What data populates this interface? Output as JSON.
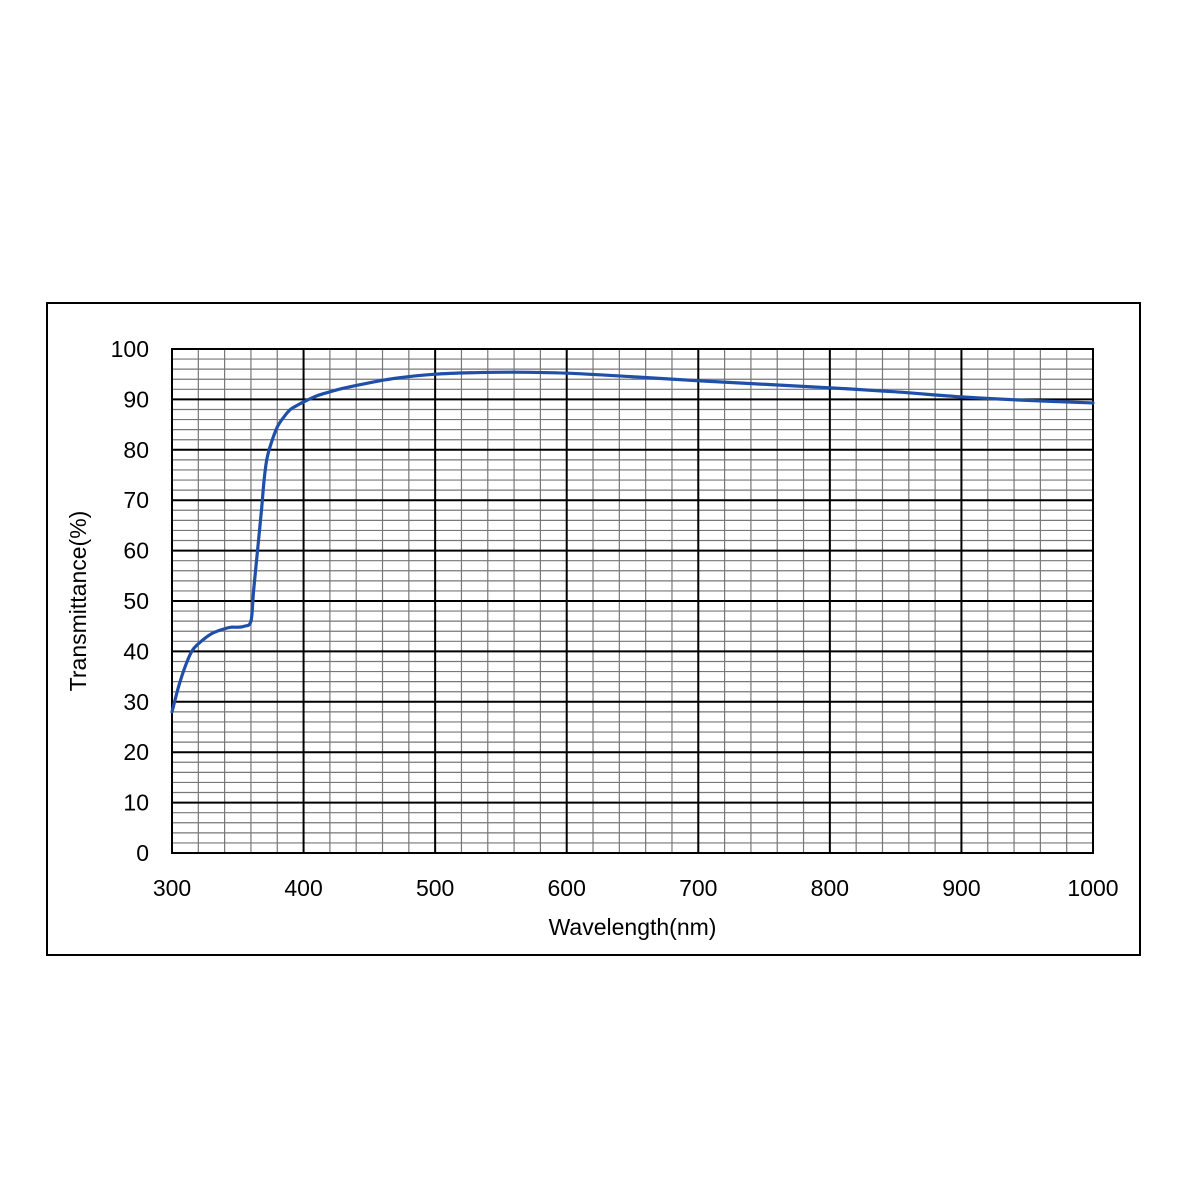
{
  "chart_data": {
    "type": "line",
    "title": "",
    "xlabel": "Wavelength(nm)",
    "ylabel": "Transmittance(%)",
    "xlim": [
      300,
      1000
    ],
    "ylim": [
      0,
      100
    ],
    "x_ticks": [
      "300",
      "400",
      "500",
      "600",
      "700",
      "800",
      "900",
      "1000"
    ],
    "y_ticks": [
      "0",
      "10",
      "20",
      "30",
      "40",
      "50",
      "60",
      "70",
      "80",
      "90",
      "100"
    ],
    "grid": true,
    "series": [
      {
        "color": "#1f4fa8",
        "x": [
          300,
          305,
          310,
          315,
          320,
          330,
          340,
          345,
          350,
          355,
          360,
          362,
          365,
          368,
          370,
          372,
          375,
          380,
          385,
          390,
          395,
          400,
          410,
          420,
          430,
          450,
          470,
          500,
          530,
          560,
          600,
          650,
          700,
          750,
          800,
          850,
          900,
          950,
          1000
        ],
        "y": [
          28,
          33,
          37,
          40,
          41.5,
          43.5,
          44.5,
          44.8,
          44.8,
          45,
          46,
          52,
          60,
          68,
          74,
          78,
          81,
          84.5,
          86.5,
          88,
          88.8,
          89.5,
          90.7,
          91.5,
          92.2,
          93.3,
          94.2,
          95,
          95.3,
          95.4,
          95.2,
          94.5,
          93.7,
          93,
          92.3,
          91.5,
          90.5,
          89.8,
          89.3
        ]
      }
    ]
  }
}
